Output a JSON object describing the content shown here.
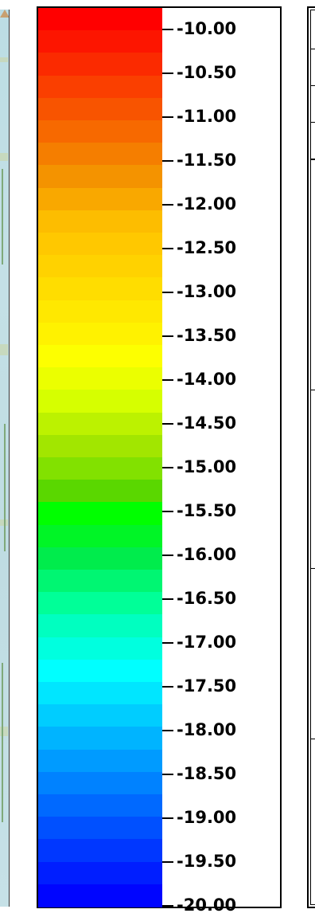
{
  "legend": {
    "ticks": [
      "-10.00",
      "-10.50",
      "-11.00",
      "-11.50",
      "-12.00",
      "-12.50",
      "-13.00",
      "-13.50",
      "-14.00",
      "-14.50",
      "-15.00",
      "-15.50",
      "-16.00",
      "-16.50",
      "-17.00",
      "-17.50",
      "-18.00",
      "-18.50",
      "-19.00",
      "-19.50",
      "-20.00"
    ],
    "colors": [
      "#ff0000",
      "#fd1500",
      "#fb2a00",
      "#fa3f00",
      "#f85400",
      "#f76900",
      "#f57e00",
      "#f49300",
      "#f9a800",
      "#fdbd00",
      "#ffc800",
      "#ffd200",
      "#ffdd00",
      "#ffe800",
      "#fff200",
      "#fdff00",
      "#ebff00",
      "#d6ff00",
      "#bcf200",
      "#a2e600",
      "#82e100",
      "#5ad700",
      "#00ff00",
      "#00f526",
      "#00ec4c",
      "#00f672",
      "#00ff98",
      "#00ffc0",
      "#00ffdf",
      "#00ffff",
      "#00e6ff",
      "#00cdff",
      "#00b4ff",
      "#009bff",
      "#0082ff",
      "#0069ff",
      "#0050ff",
      "#0037ff",
      "#001eff",
      "#0005ff"
    ]
  }
}
